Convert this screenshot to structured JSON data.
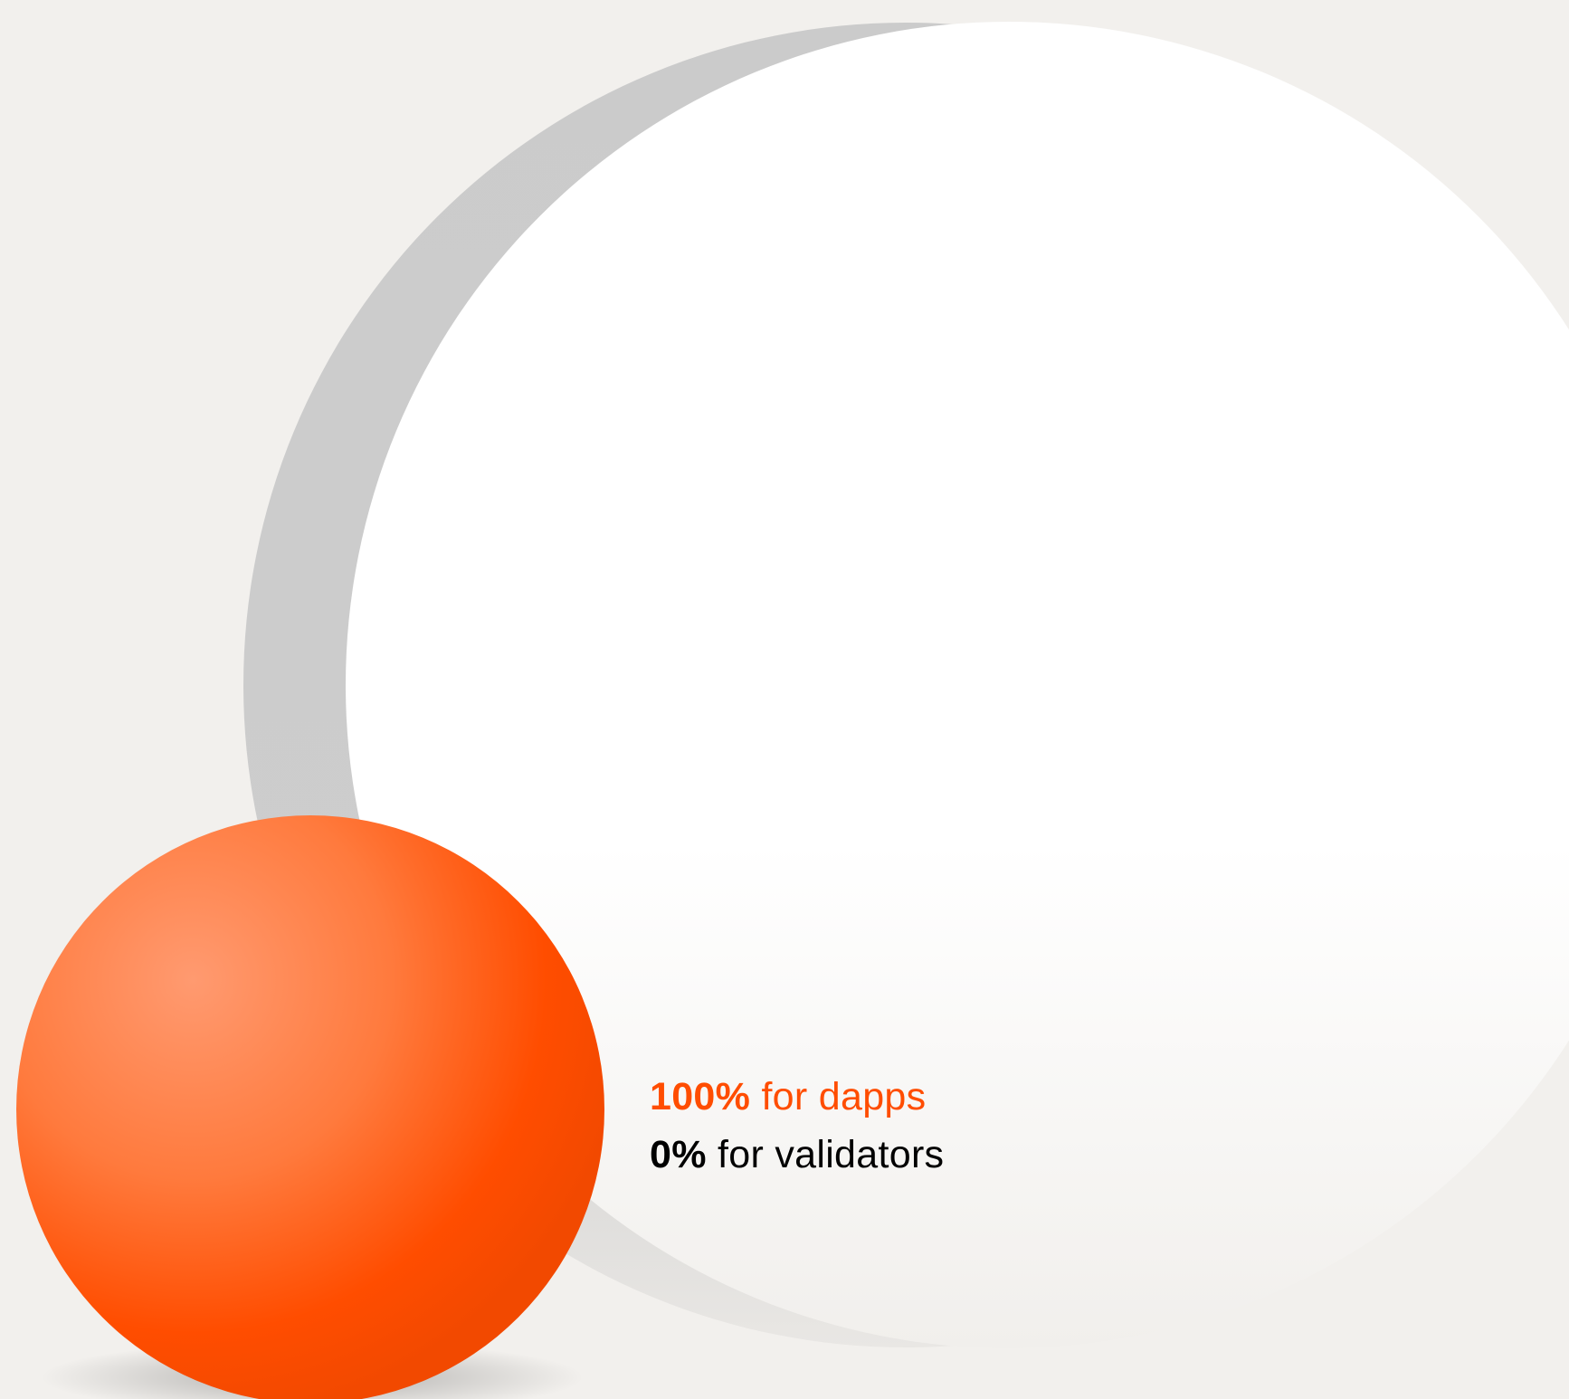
{
  "legend": {
    "dapps": {
      "value": "100%",
      "label": "for dapps"
    },
    "validators": {
      "value": "0%",
      "label": "for validators"
    }
  },
  "colors": {
    "background": "#f2f0ed",
    "accent": "#ff4d00",
    "text": "#000000",
    "large_sphere": "#ffffff",
    "sphere_shadow": "#cbcbcb"
  },
  "shares": {
    "dapps_percent": 100,
    "validators_percent": 0
  }
}
